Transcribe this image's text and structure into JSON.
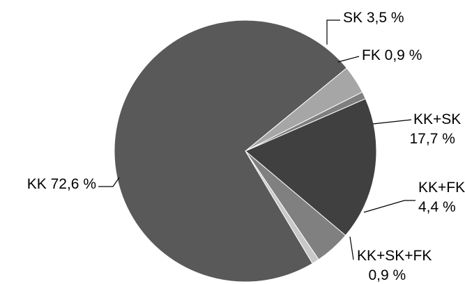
{
  "chart_data": {
    "type": "pie",
    "slices": [
      {
        "label": "SK",
        "value": 3.5,
        "color": "#a6a6a6",
        "text_lines": [
          "SK 3,5 %"
        ]
      },
      {
        "label": "FK",
        "value": 0.9,
        "color": "#7f7f7f",
        "text_lines": [
          "FK 0,9 %"
        ]
      },
      {
        "label": "KK+SK",
        "value": 17.7,
        "color": "#404040",
        "text_lines": [
          "KK+SK",
          "17,7 %"
        ]
      },
      {
        "label": "KK+FK",
        "value": 4.4,
        "color": "#808080",
        "text_lines": [
          "KK+FK",
          "4,4 %"
        ]
      },
      {
        "label": "KK+SK+FK",
        "value": 0.9,
        "color": "#c8c8c8",
        "text_lines": [
          "KK+SK+FK",
          "0,9 %"
        ]
      },
      {
        "label": "KK",
        "value": 72.6,
        "color": "#595959",
        "text_lines": [
          "KK 72,6 %"
        ]
      }
    ],
    "start_angle_deg": 50.6,
    "direction": "clockwise",
    "legend": "none"
  }
}
